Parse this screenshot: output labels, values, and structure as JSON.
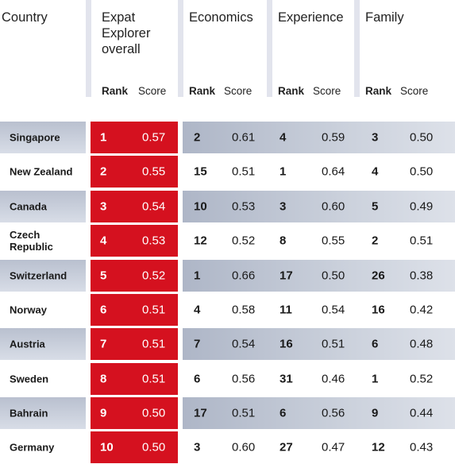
{
  "headers": {
    "country": "Country",
    "overall_line1": "Expat",
    "overall_line2": "Explorer",
    "overall_line3": "overall",
    "economics": "Economics",
    "experience": "Experience",
    "family": "Family",
    "rank": "Rank",
    "score": "Score"
  },
  "colors": {
    "highlight_red": "#d5111f",
    "row_shade": "#c2c8d6",
    "divider": "#e2e4ed"
  },
  "rows": [
    {
      "country": "Singapore",
      "overall_rank": "1",
      "overall_score": "0.57",
      "econ_rank": "2",
      "econ_score": "0.61",
      "exp_rank": "4",
      "exp_score": "0.59",
      "fam_rank": "3",
      "fam_score": "0.50"
    },
    {
      "country": "New Zealand",
      "overall_rank": "2",
      "overall_score": "0.55",
      "econ_rank": "15",
      "econ_score": "0.51",
      "exp_rank": "1",
      "exp_score": "0.64",
      "fam_rank": "4",
      "fam_score": "0.50"
    },
    {
      "country": "Canada",
      "overall_rank": "3",
      "overall_score": "0.54",
      "econ_rank": "10",
      "econ_score": "0.53",
      "exp_rank": "3",
      "exp_score": "0.60",
      "fam_rank": "5",
      "fam_score": "0.49"
    },
    {
      "country": "Czech Republic",
      "overall_rank": "4",
      "overall_score": "0.53",
      "econ_rank": "12",
      "econ_score": "0.52",
      "exp_rank": "8",
      "exp_score": "0.55",
      "fam_rank": "2",
      "fam_score": "0.51"
    },
    {
      "country": "Switzerland",
      "overall_rank": "5",
      "overall_score": "0.52",
      "econ_rank": "1",
      "econ_score": "0.66",
      "exp_rank": "17",
      "exp_score": "0.50",
      "fam_rank": "26",
      "fam_score": "0.38"
    },
    {
      "country": "Norway",
      "overall_rank": "6",
      "overall_score": "0.51",
      "econ_rank": "4",
      "econ_score": "0.58",
      "exp_rank": "11",
      "exp_score": "0.54",
      "fam_rank": "16",
      "fam_score": "0.42"
    },
    {
      "country": "Austria",
      "overall_rank": "7",
      "overall_score": "0.51",
      "econ_rank": "7",
      "econ_score": "0.54",
      "exp_rank": "16",
      "exp_score": "0.51",
      "fam_rank": "6",
      "fam_score": "0.48"
    },
    {
      "country": "Sweden",
      "overall_rank": "8",
      "overall_score": "0.51",
      "econ_rank": "6",
      "econ_score": "0.56",
      "exp_rank": "31",
      "exp_score": "0.46",
      "fam_rank": "1",
      "fam_score": "0.52"
    },
    {
      "country": "Bahrain",
      "overall_rank": "9",
      "overall_score": "0.50",
      "econ_rank": "17",
      "econ_score": "0.51",
      "exp_rank": "6",
      "exp_score": "0.56",
      "fam_rank": "9",
      "fam_score": "0.44"
    },
    {
      "country": "Germany",
      "overall_rank": "10",
      "overall_score": "0.50",
      "econ_rank": "3",
      "econ_score": "0.60",
      "exp_rank": "27",
      "exp_score": "0.47",
      "fam_rank": "12",
      "fam_score": "0.43"
    }
  ]
}
